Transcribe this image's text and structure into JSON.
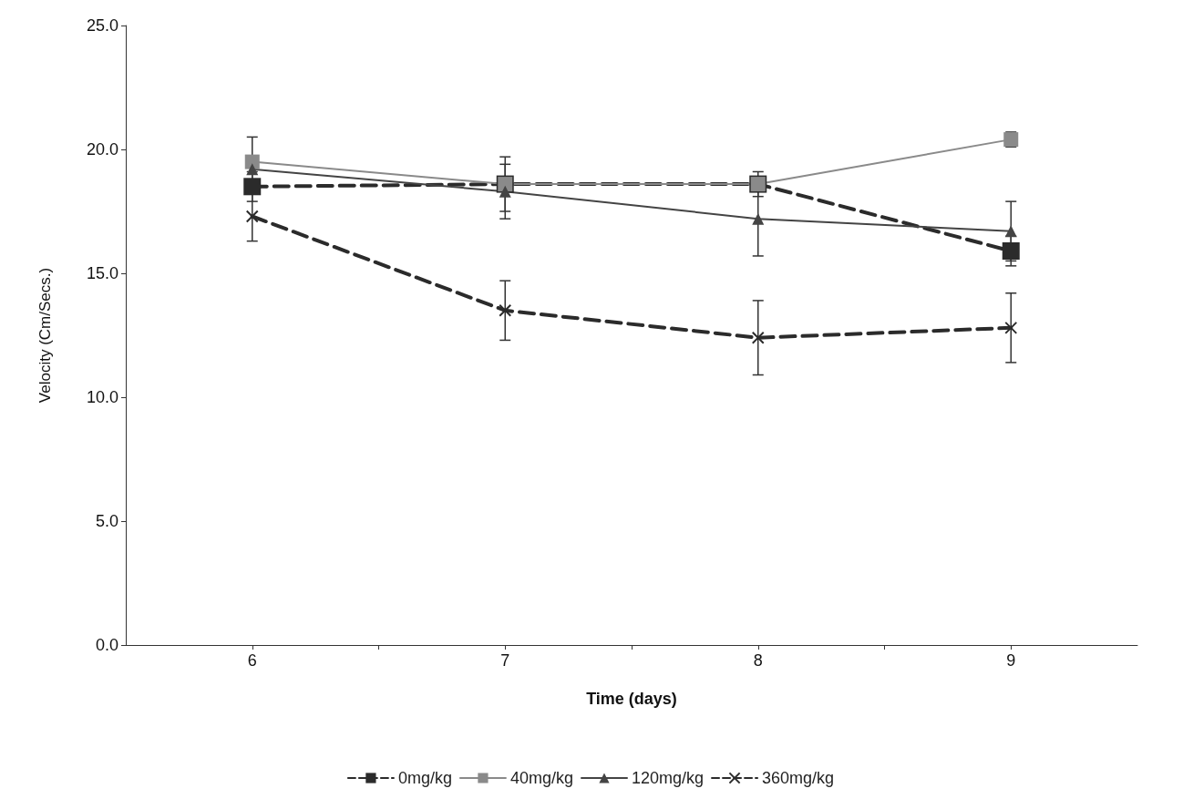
{
  "chart_data": {
    "type": "line",
    "xlabel": "Time (days)",
    "ylabel": "Velocity (Cm/Secs.)",
    "x": [
      6,
      7,
      8,
      9
    ],
    "xlim": [
      5.5,
      9.5
    ],
    "xticks": [
      6,
      {
        "value": 6.5,
        "label": null
      },
      7,
      {
        "value": 7.5,
        "label": null
      },
      8,
      {
        "value": 8.5,
        "label": null
      },
      9
    ],
    "ylim": [
      0,
      25
    ],
    "yticks": [
      {
        "value": 0,
        "label": "0.0"
      },
      {
        "value": 5,
        "label": "5.0"
      },
      {
        "value": 10,
        "label": "10.0"
      },
      {
        "value": 15,
        "label": "15.0"
      },
      {
        "value": 20,
        "label": "20.0"
      },
      {
        "value": 25,
        "label": "25.0"
      }
    ],
    "grid": false,
    "legend": "bottom",
    "series": [
      {
        "name": "0mg/kg",
        "color": "#2b2b2b",
        "marker": "square",
        "line_style": "dashed",
        "values": [
          18.5,
          18.6,
          18.6,
          15.9
        ],
        "errors": [
          0.6,
          1.1,
          0.5,
          0.6
        ]
      },
      {
        "name": "40mg/kg",
        "color": "#8a8a8a",
        "marker": "square",
        "line_style": "solid",
        "values": [
          19.5,
          18.6,
          18.6,
          20.4
        ],
        "errors": [
          1.0,
          null,
          null,
          0.3
        ]
      },
      {
        "name": "120mg/kg",
        "color": "#444444",
        "marker": "triangle",
        "line_style": "solid",
        "values": [
          19.2,
          18.3,
          17.2,
          16.7
        ],
        "errors": [
          null,
          1.1,
          1.5,
          1.2
        ]
      },
      {
        "name": "360mg/kg",
        "color": "#2b2b2b",
        "marker": "cross",
        "line_style": "dashed",
        "values": [
          17.3,
          13.5,
          12.4,
          12.8
        ],
        "errors": [
          1.0,
          1.2,
          1.5,
          1.4
        ]
      }
    ]
  }
}
